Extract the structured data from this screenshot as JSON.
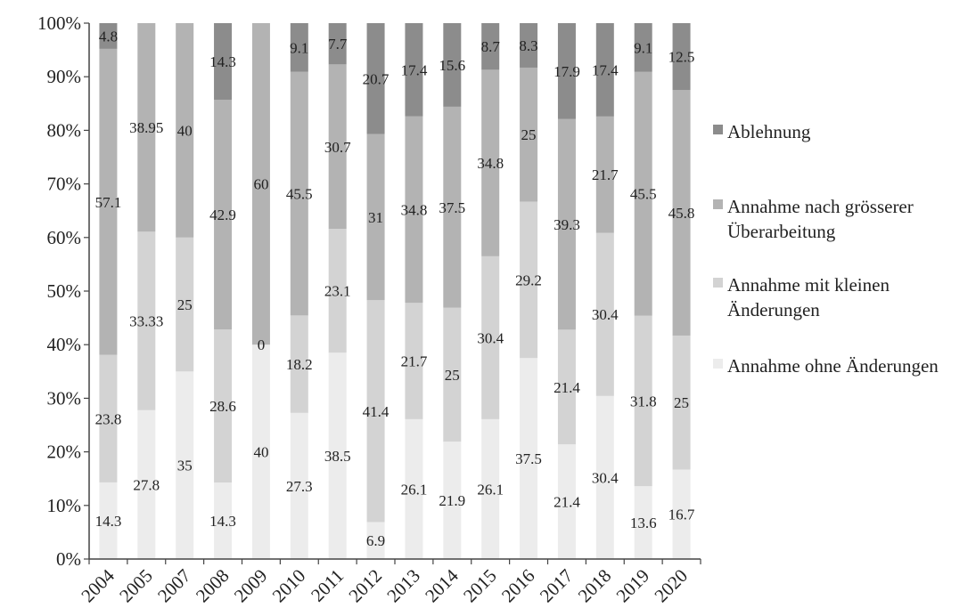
{
  "chart_data": {
    "type": "bar",
    "stacked": "percent",
    "title": "",
    "xlabel": "",
    "ylabel": "",
    "ylim": [
      0,
      100
    ],
    "yticks": [
      "0%",
      "10%",
      "20%",
      "30%",
      "40%",
      "50%",
      "60%",
      "70%",
      "80%",
      "90%",
      "100%"
    ],
    "grid": false,
    "legend": "right",
    "categories": [
      "2004",
      "2005",
      "2007",
      "2008",
      "2009",
      "2010",
      "2011",
      "2012",
      "2013",
      "2014",
      "2015",
      "2016",
      "2017",
      "2018",
      "2019",
      "2020"
    ],
    "series": [
      {
        "name": "Annahme ohne Änderungen",
        "color": "#ececec",
        "values": [
          14.3,
          27.8,
          35,
          14.3,
          40,
          27.3,
          38.5,
          6.9,
          26.1,
          21.9,
          26.1,
          37.5,
          21.4,
          30.4,
          13.6,
          16.7
        ],
        "labels": [
          "14.3",
          "27.8",
          "35",
          "14.3",
          "40",
          "27.3",
          "38.5",
          "6.9",
          "26.1",
          "21.9",
          "26.1",
          "37.5",
          "21.4",
          "30.4",
          "13.6",
          "16.7"
        ]
      },
      {
        "name": "Annahme mit kleinen Änderungen",
        "color": "#d3d3d3",
        "values": [
          23.8,
          33.33,
          25,
          28.6,
          0,
          18.2,
          23.1,
          41.4,
          21.7,
          25,
          30.4,
          29.2,
          21.4,
          30.4,
          31.8,
          25
        ],
        "labels": [
          "23.8",
          "33.33",
          "25",
          "28.6",
          "0",
          "18.2",
          "23.1",
          "41.4",
          "21.7",
          "25",
          "30.4",
          "29.2",
          "21.4",
          "30.4",
          "31.8",
          "25"
        ]
      },
      {
        "name": "Annahme nach grösserer Überarbeitung",
        "color": "#b3b3b3",
        "values": [
          57.1,
          38.95,
          40,
          42.9,
          60,
          45.5,
          30.7,
          31,
          34.8,
          37.5,
          34.8,
          25,
          39.3,
          21.7,
          45.5,
          45.8
        ],
        "labels": [
          "57.1",
          "38.95",
          "40",
          "42.9",
          "60",
          "45.5",
          "30.7",
          "31",
          "34.8",
          "37.5",
          "34.8",
          "25",
          "39.3",
          "21.7",
          "45.5",
          "45.8"
        ]
      },
      {
        "name": "Ablehnung",
        "color": "#8c8c8c",
        "values": [
          4.8,
          0,
          0,
          14.3,
          0,
          9.1,
          7.7,
          20.7,
          17.4,
          15.6,
          8.7,
          8.3,
          17.9,
          17.4,
          9.1,
          12.5
        ],
        "labels": [
          "4.8",
          "",
          "",
          "14.3",
          "",
          "9.1",
          "7.7",
          "20.7",
          "17.4",
          "15.6",
          "8.7",
          "8.3",
          "17.9",
          "17.4",
          "9.1",
          "12.5"
        ]
      }
    ],
    "legend_entries": [
      {
        "lines": [
          "Ablehnung"
        ],
        "series": 3
      },
      {
        "lines": [
          "Annahme nach grösserer",
          "Überarbeitung"
        ],
        "series": 2
      },
      {
        "lines": [
          "Annahme mit kleinen",
          "Änderungen"
        ],
        "series": 1
      },
      {
        "lines": [
          "Annahme ohne Änderungen"
        ],
        "series": 0
      }
    ]
  }
}
